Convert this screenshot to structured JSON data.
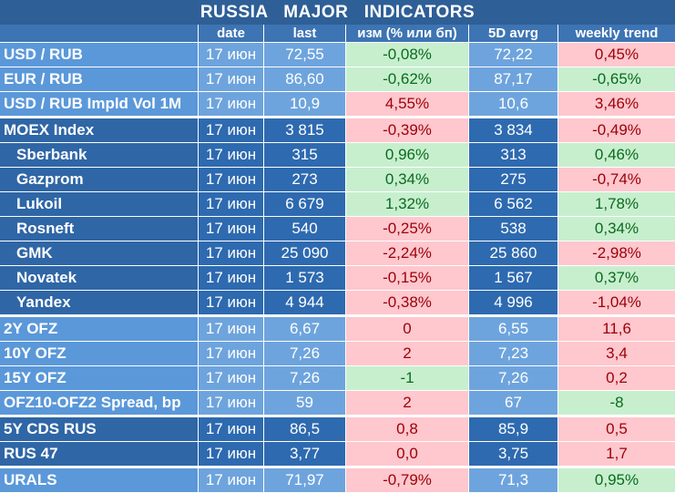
{
  "title": "RUSSIA   MAJOR   INDICATORS",
  "headers": {
    "name": "",
    "date": "date",
    "last": "last",
    "change": "изм (% или бп)",
    "avg5d": "5D avrg",
    "trend": "weekly trend"
  },
  "colors": {
    "header_bg": "#3d74b3",
    "title_bg": "#2e5f96",
    "positive_bg": "#c7efce",
    "positive_text": "#0b6a1e",
    "negative_bg": "#ffc7ce",
    "negative_text": "#9c0006"
  },
  "rows": [
    {
      "name": "USD / RUB",
      "date": "17 июн",
      "last": "72,55",
      "change": "-0,08%",
      "change_sign": "pos",
      "avg5d": "72,22",
      "trend": "0,45%",
      "trend_sign": "neg"
    },
    {
      "name": "EUR / RUB",
      "date": "17 июн",
      "last": "86,60",
      "change": "-0,62%",
      "change_sign": "pos",
      "avg5d": "87,17",
      "trend": "-0,65%",
      "trend_sign": "pos"
    },
    {
      "name": "USD / RUB Impld Vol 1M",
      "date": "17 июн",
      "last": "10,9",
      "change": "4,55%",
      "change_sign": "neg",
      "avg5d": "10,6",
      "trend": "3,46%",
      "trend_sign": "neg"
    },
    {
      "name": "MOEX Index",
      "date": "17 июн",
      "last": "3 815",
      "change": "-0,39%",
      "change_sign": "neg",
      "avg5d": "3 834",
      "trend": "-0,49%",
      "trend_sign": "neg"
    },
    {
      "name": "Sberbank",
      "date": "17 июн",
      "last": "315",
      "change": "0,96%",
      "change_sign": "pos",
      "avg5d": "313",
      "trend": "0,46%",
      "trend_sign": "pos"
    },
    {
      "name": "Gazprom",
      "date": "17 июн",
      "last": "273",
      "change": "0,34%",
      "change_sign": "pos",
      "avg5d": "275",
      "trend": "-0,74%",
      "trend_sign": "neg"
    },
    {
      "name": "Lukoil",
      "date": "17 июн",
      "last": "6 679",
      "change": "1,32%",
      "change_sign": "pos",
      "avg5d": "6 562",
      "trend": "1,78%",
      "trend_sign": "pos"
    },
    {
      "name": "Rosneft",
      "date": "17 июн",
      "last": "540",
      "change": "-0,25%",
      "change_sign": "neg",
      "avg5d": "538",
      "trend": "0,34%",
      "trend_sign": "pos"
    },
    {
      "name": "GMK",
      "date": "17 июн",
      "last": "25 090",
      "change": "-2,24%",
      "change_sign": "neg",
      "avg5d": "25 860",
      "trend": "-2,98%",
      "trend_sign": "neg"
    },
    {
      "name": "Novatek",
      "date": "17 июн",
      "last": "1 573",
      "change": "-0,15%",
      "change_sign": "neg",
      "avg5d": "1 567",
      "trend": "0,37%",
      "trend_sign": "pos"
    },
    {
      "name": "Yandex",
      "date": "17 июн",
      "last": "4 944",
      "change": "-0,38%",
      "change_sign": "neg",
      "avg5d": "4 996",
      "trend": "-1,04%",
      "trend_sign": "neg"
    },
    {
      "name": "2Y OFZ",
      "date": "17 июн",
      "last": "6,67",
      "change": "0",
      "change_sign": "neg",
      "avg5d": "6,55",
      "trend": "11,6",
      "trend_sign": "neg"
    },
    {
      "name": "10Y OFZ",
      "date": "17 июн",
      "last": "7,26",
      "change": "2",
      "change_sign": "neg",
      "avg5d": "7,23",
      "trend": "3,4",
      "trend_sign": "neg"
    },
    {
      "name": "15Y OFZ",
      "date": "17 июн",
      "last": "7,26",
      "change": "-1",
      "change_sign": "pos",
      "avg5d": "7,26",
      "trend": "0,2",
      "trend_sign": "neg"
    },
    {
      "name": "OFZ10-OFZ2 Spread, bp",
      "date": "17 июн",
      "last": "59",
      "change": "2",
      "change_sign": "neg",
      "avg5d": "67",
      "trend": "-8",
      "trend_sign": "pos"
    },
    {
      "name": "5Y CDS RUS",
      "date": "17 июн",
      "last": "86,5",
      "change": "0,8",
      "change_sign": "neg",
      "avg5d": "85,9",
      "trend": "0,5",
      "trend_sign": "neg"
    },
    {
      "name": "RUS 47",
      "date": "17 июн",
      "last": "3,77",
      "change": "0,0",
      "change_sign": "neg",
      "avg5d": "3,75",
      "trend": "1,7",
      "trend_sign": "neg"
    },
    {
      "name": "URALS",
      "date": "17 июн",
      "last": "71,97",
      "change": "-0,79%",
      "change_sign": "neg",
      "avg5d": "71,3",
      "trend": "0,95%",
      "trend_sign": "pos"
    }
  ]
}
